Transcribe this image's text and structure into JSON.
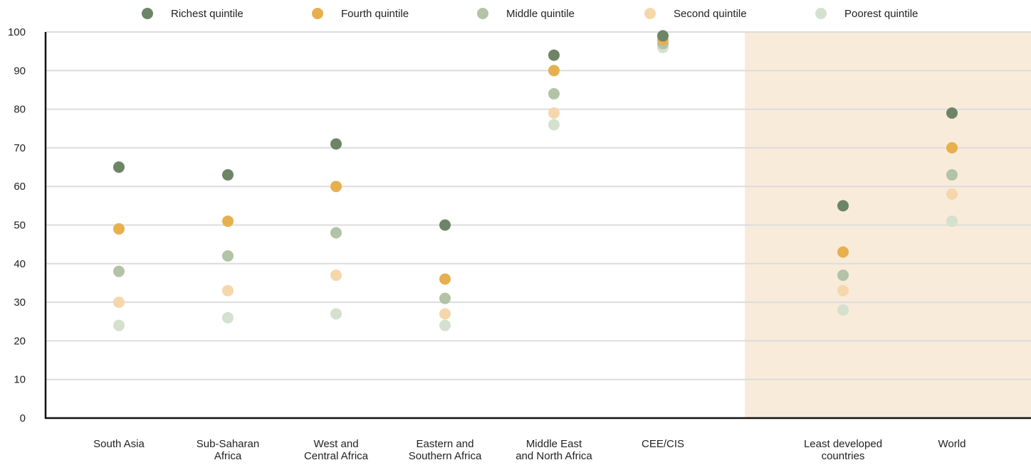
{
  "chart_data": {
    "type": "scatter",
    "title": "",
    "xlabel": "",
    "ylabel": "",
    "ylim": [
      0,
      100
    ],
    "yticks": [
      0,
      10,
      20,
      30,
      40,
      50,
      60,
      70,
      80,
      90,
      100
    ],
    "grid": true,
    "legend_position": "top",
    "categories": [
      [
        "South Asia"
      ],
      [
        "Sub-Saharan",
        "Africa"
      ],
      [
        "West and",
        "Central Africa"
      ],
      [
        "Eastern and",
        "Southern Africa"
      ],
      [
        "Middle East",
        "and North Africa"
      ],
      [
        "CEE/CIS"
      ],
      [
        "Least developed",
        "countries"
      ],
      [
        "World"
      ]
    ],
    "highlighted_categories": [
      "Least developed countries",
      "World"
    ],
    "highlight_color": "#f9ebda",
    "series": [
      {
        "name": "Richest quintile",
        "color": "#6e8466",
        "values": [
          65,
          63,
          71,
          50,
          94,
          99,
          55,
          79
        ]
      },
      {
        "name": "Fourth quintile",
        "color": "#e6b04f",
        "values": [
          49,
          51,
          60,
          36,
          90,
          98,
          43,
          70
        ]
      },
      {
        "name": "Middle quintile",
        "color": "#b2c3a6",
        "values": [
          38,
          42,
          48,
          31,
          84,
          97,
          37,
          63
        ]
      },
      {
        "name": "Second quintile",
        "color": "#f5d7ab",
        "values": [
          30,
          33,
          37,
          27,
          79,
          97,
          33,
          58
        ]
      },
      {
        "name": "Poorest quintile",
        "color": "#d5e0cf",
        "values": [
          24,
          26,
          27,
          24,
          76,
          96,
          28,
          51
        ]
      }
    ]
  }
}
